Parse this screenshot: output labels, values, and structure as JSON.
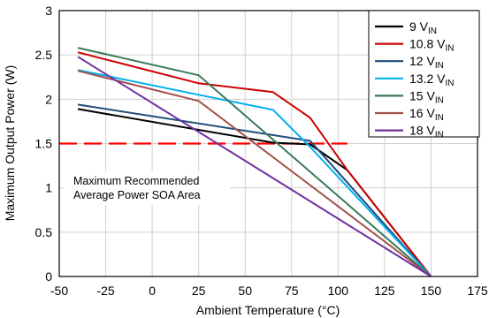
{
  "chart_data": {
    "type": "line",
    "title": "",
    "xlabel": "Ambient Temperature (°C)",
    "ylabel": "Maximum Output Power (W)",
    "xlim": [
      -50,
      175
    ],
    "ylim": [
      0,
      3
    ],
    "xticks": [
      -50,
      -25,
      0,
      25,
      50,
      75,
      100,
      125,
      150,
      175
    ],
    "xtick_labels": [
      "-50",
      "-25",
      "0",
      "25",
      "50",
      "75",
      "100",
      "125",
      "150",
      "175"
    ],
    "yticks": [
      0,
      0.5,
      1,
      1.5,
      2,
      2.5,
      3
    ],
    "ytick_labels": [
      "0",
      "0.5",
      "1",
      "1.5",
      "2",
      "2.5",
      "3"
    ],
    "grid": true,
    "legend_position": "top-right",
    "series": [
      {
        "name": "9 V",
        "subscript": "IN",
        "color": "#000000",
        "points": [
          [
            -40,
            1.89
          ],
          [
            65,
            1.51
          ],
          [
            85,
            1.49
          ],
          [
            105,
            1.2
          ],
          [
            150,
            0
          ]
        ]
      },
      {
        "name": "10.8 V",
        "subscript": "IN",
        "color": "#cc0000",
        "points": [
          [
            -40,
            2.53
          ],
          [
            25,
            2.18
          ],
          [
            65,
            2.08
          ],
          [
            85,
            1.79
          ],
          [
            105,
            1.2
          ],
          [
            150,
            0
          ]
        ]
      },
      {
        "name": "12 V",
        "subscript": "IN",
        "color": "#1f4e79",
        "points": [
          [
            -40,
            1.94
          ],
          [
            85,
            1.53
          ],
          [
            150,
            0
          ]
        ]
      },
      {
        "name": "13.2 V",
        "subscript": "IN",
        "color": "#00b0f0",
        "points": [
          [
            -40,
            2.33
          ],
          [
            25,
            2.05
          ],
          [
            65,
            1.88
          ],
          [
            85,
            1.46
          ],
          [
            150,
            0
          ]
        ]
      },
      {
        "name": "15 V",
        "subscript": "IN",
        "color": "#3b7a57",
        "points": [
          [
            -40,
            2.58
          ],
          [
            25,
            2.27
          ],
          [
            150,
            0
          ]
        ]
      },
      {
        "name": "16 V",
        "subscript": "IN",
        "color": "#a0524a",
        "points": [
          [
            -40,
            2.32
          ],
          [
            25,
            1.98
          ],
          [
            150,
            0
          ]
        ]
      },
      {
        "name": "18 V",
        "subscript": "IN",
        "color": "#7030a0",
        "points": [
          [
            -40,
            2.48
          ],
          [
            150,
            0
          ]
        ]
      }
    ],
    "reference_line": {
      "y": 1.5,
      "x_from": -50,
      "x_to": 105,
      "color": "#ff0000",
      "style": "dashed"
    },
    "annotation": [
      "Maximum Recommended",
      "Average Power SOA Area"
    ]
  }
}
